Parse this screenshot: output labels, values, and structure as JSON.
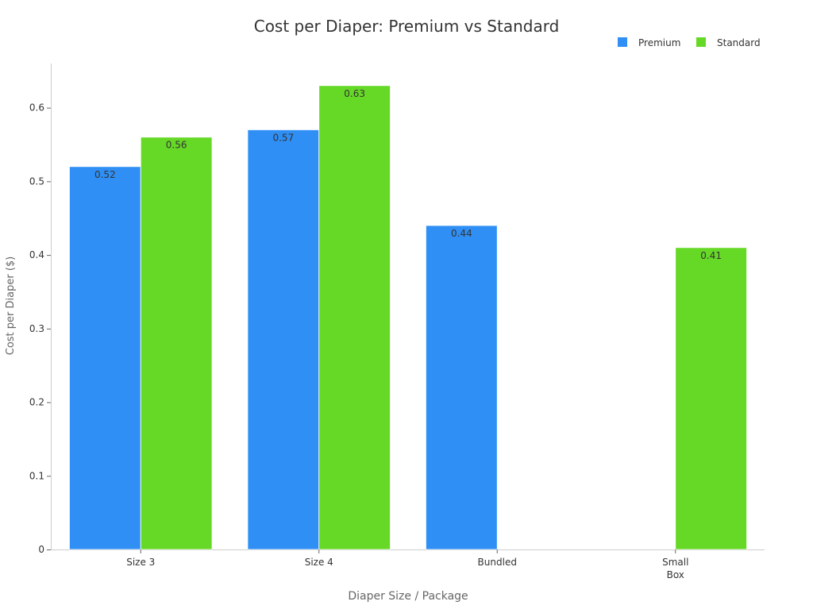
{
  "chart_data": {
    "type": "bar",
    "title": "Cost per Diaper: Premium vs Standard",
    "xlabel": "Diaper Size / Package",
    "ylabel": "Cost per Diaper ($)",
    "categories": [
      "Size 3",
      "Size 4",
      "Bundled",
      "Small\nBox"
    ],
    "series": [
      {
        "name": "Premium",
        "color": "#2f8ff5",
        "values": [
          0.52,
          0.57,
          0.44,
          null
        ]
      },
      {
        "name": "Standard",
        "color": "#66d927",
        "values": [
          0.56,
          0.63,
          null,
          0.41
        ]
      }
    ],
    "ylim": [
      0,
      0.66
    ],
    "yticks": [
      "0",
      "0.1",
      "0.2",
      "0.3",
      "0.4",
      "0.5",
      "0.6"
    ],
    "legend": "top-right",
    "grid": false,
    "data_labels": true
  }
}
